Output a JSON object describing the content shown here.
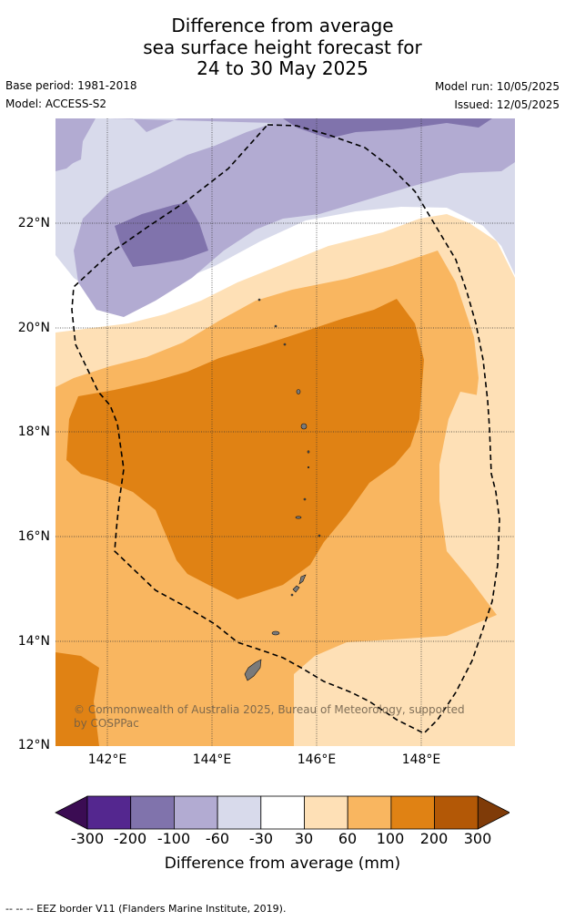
{
  "title": {
    "line1": "Difference from average",
    "line2": "sea surface height forecast for",
    "line3": "24 to 30 May 2025"
  },
  "meta": {
    "base_period": "Base period: 1981-2018",
    "model": "Model: ACCESS-S2",
    "model_run": "Model run: 10/05/2025",
    "issued": "Issued: 12/05/2025"
  },
  "map": {
    "lat_labels": [
      "22°N",
      "20°N",
      "18°N",
      "16°N",
      "14°N",
      "12°N"
    ],
    "lon_labels": [
      "142°E",
      "144°E",
      "146°E",
      "148°E"
    ],
    "copyright": "© Commonwealth of Australia 2025, Bureau of Meteorology, supported by COSPPac"
  },
  "colorbar": {
    "ticks": [
      "-300",
      "-200",
      "-100",
      "-60",
      "-30",
      "30",
      "60",
      "100",
      "200",
      "300"
    ],
    "colors": [
      "#3b0c53",
      "#54278f",
      "#8073ac",
      "#b2abd2",
      "#d8daeb",
      "#ffffff",
      "#fee0b6",
      "#f9b660",
      "#e08214",
      "#b35806",
      "#7f3b08"
    ],
    "label": "Difference from average (mm)"
  },
  "footnote": "--  --  -- EEZ border V11 (Flanders Marine Institute, 2019)."
}
